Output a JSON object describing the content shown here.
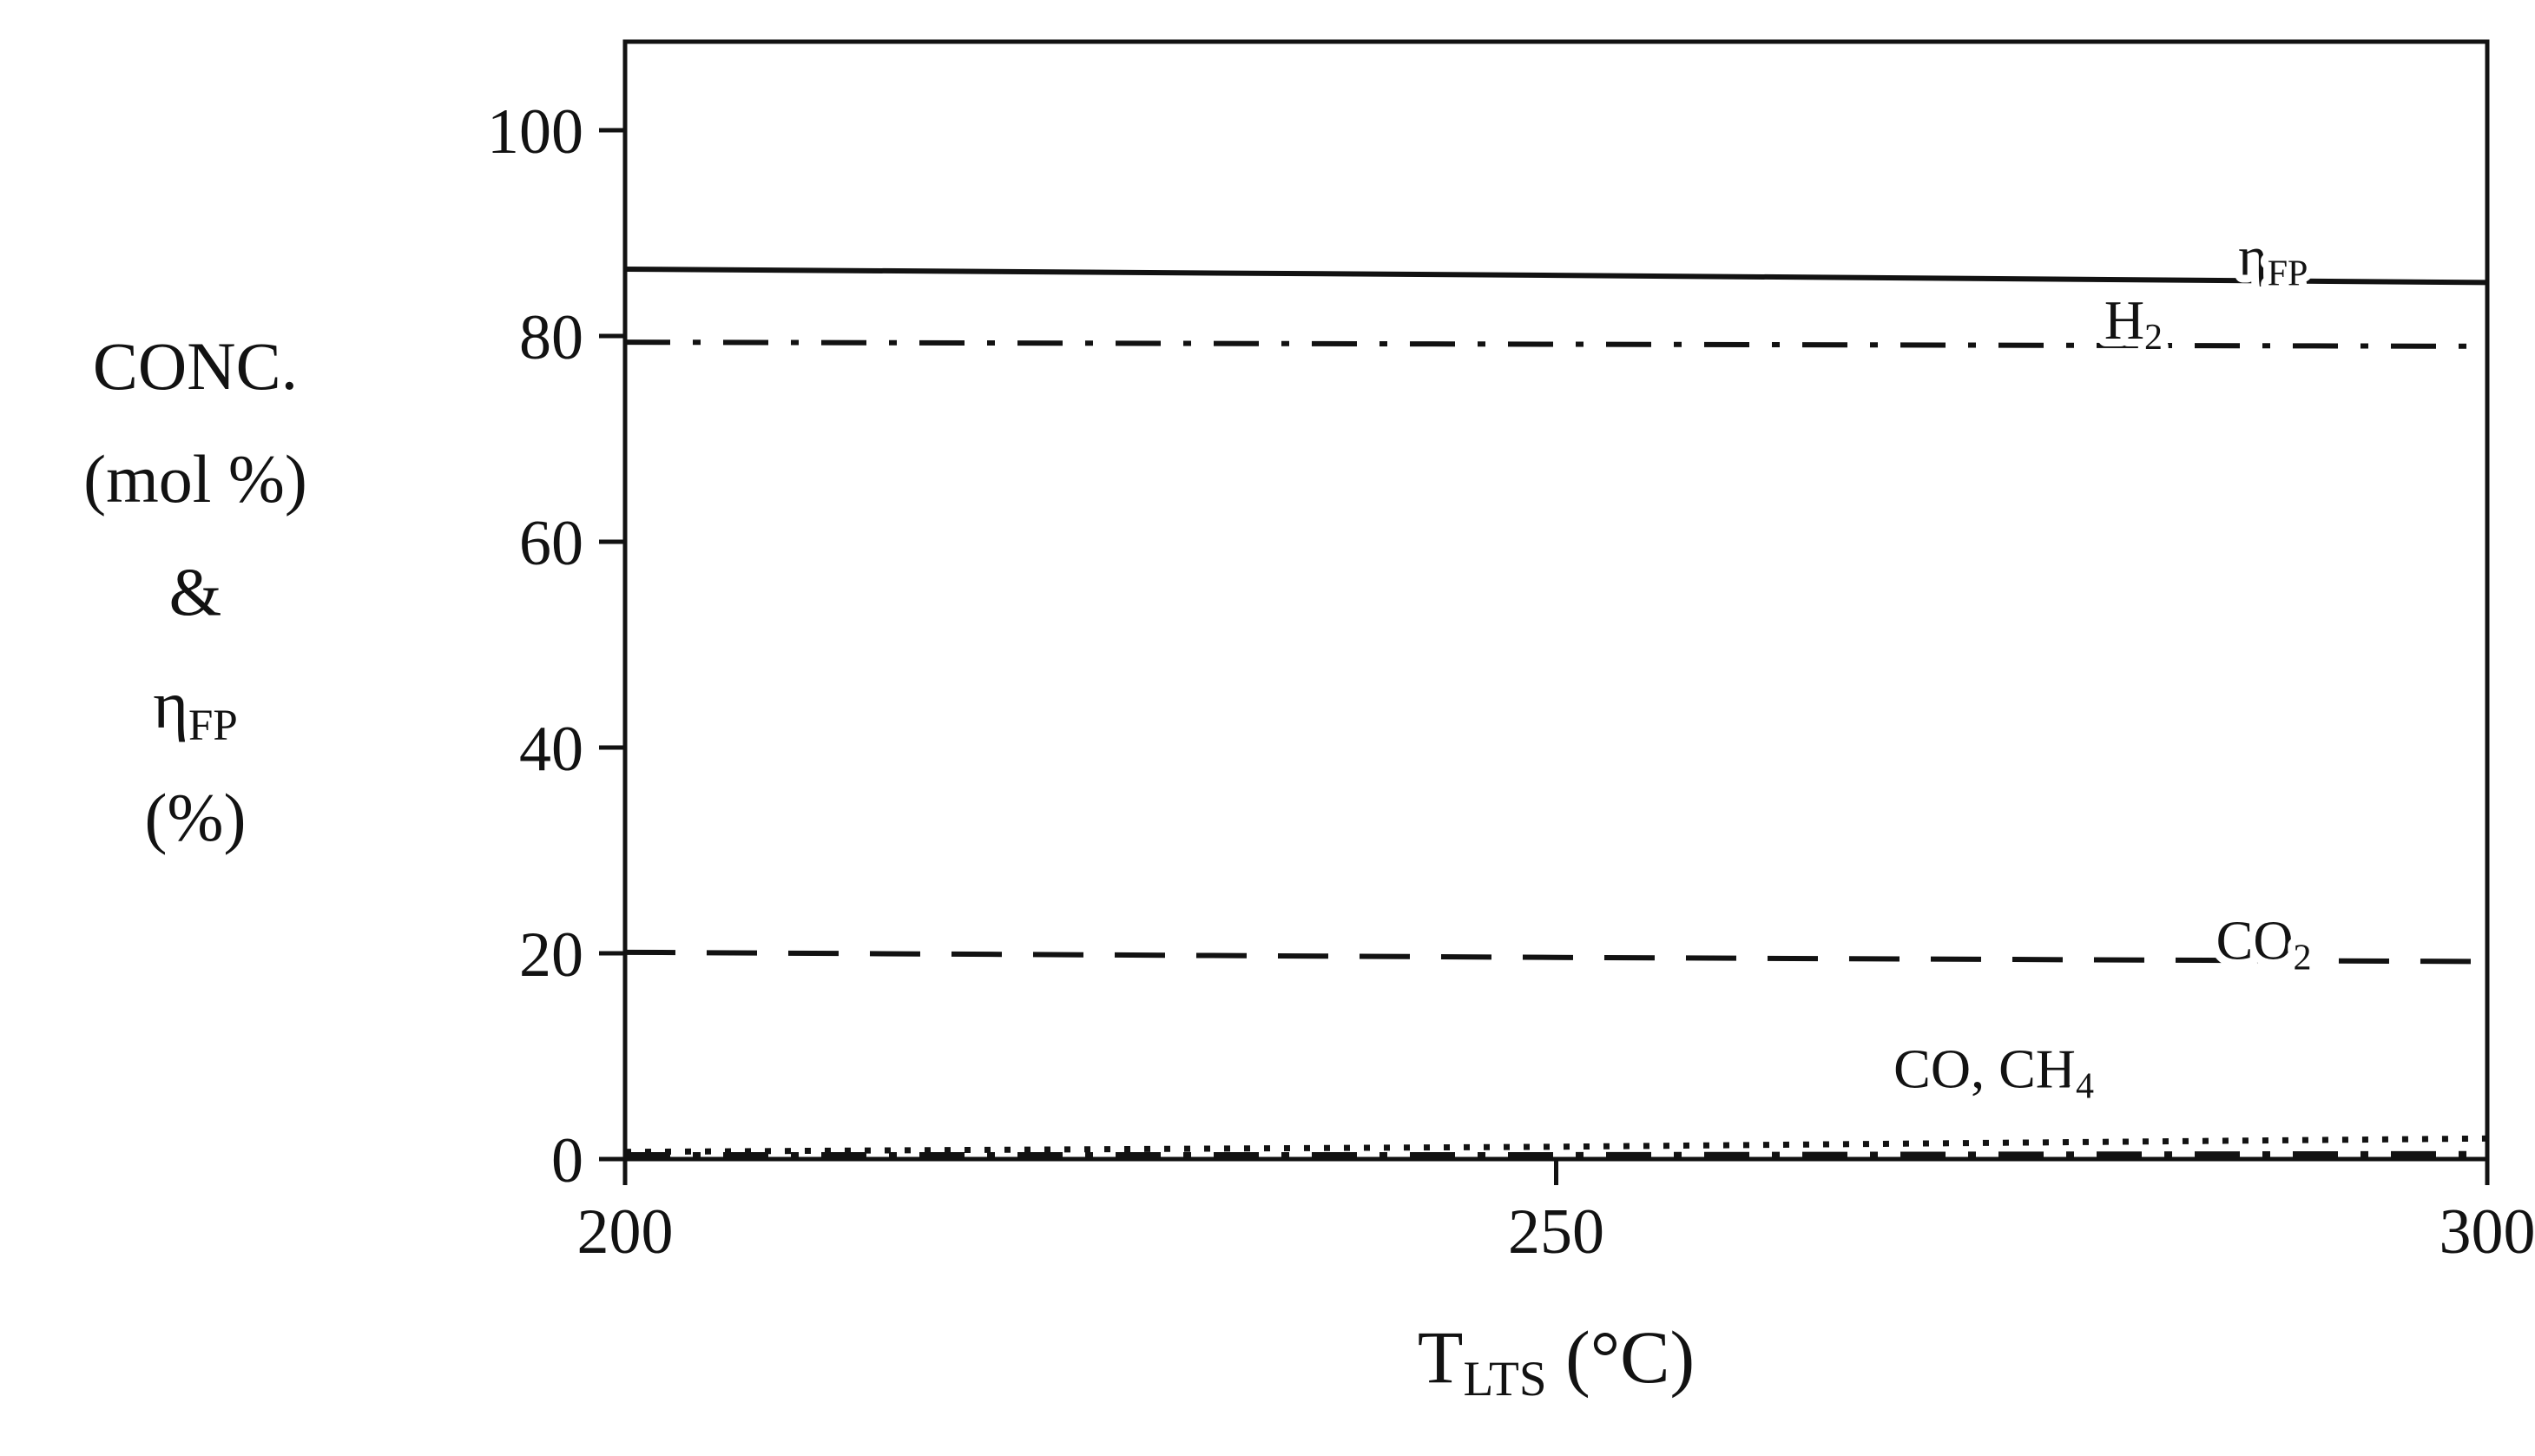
{
  "chart_data": {
    "type": "line",
    "title": "",
    "xlabel_segments": [
      {
        "t": "T"
      },
      {
        "t": "LTS",
        "sub": true
      },
      {
        "t": " (°C)"
      }
    ],
    "ylabel_lines": [
      [
        {
          "t": "CONC."
        }
      ],
      [
        {
          "t": "(mol %)"
        }
      ],
      [
        {
          "t": "&"
        }
      ],
      [
        {
          "t": "η"
        },
        {
          "t": "FP",
          "sub": true
        }
      ],
      [
        {
          "t": "(%)"
        }
      ]
    ],
    "xlim": [
      200,
      300
    ],
    "ylim": [
      0,
      100
    ],
    "x_ticks": [
      200,
      250,
      300
    ],
    "y_ticks": [
      0,
      20,
      40,
      60,
      80,
      100
    ],
    "grid": false,
    "legend_position": "inline-labels",
    "x": [
      200,
      250,
      300
    ],
    "series": [
      {
        "name": "eta_FP",
        "label": [
          {
            "t": "η"
          },
          {
            "t": "FP",
            "sub": true
          }
        ],
        "dash": "solid",
        "width": 6,
        "values": [
          86.5,
          85.9,
          85.2
        ],
        "label_pos": {
          "x": 288.5,
          "y": 87.8
        }
      },
      {
        "name": "H2",
        "label": [
          {
            "t": "H"
          },
          {
            "t": "2",
            "sub": true
          }
        ],
        "dash": "dashdot",
        "width": 6,
        "values": [
          79.4,
          79.2,
          79.0
        ],
        "label_pos": {
          "x": 281,
          "y": 81.6
        }
      },
      {
        "name": "CO2",
        "label": [
          {
            "t": "CO"
          },
          {
            "t": "2",
            "sub": true
          }
        ],
        "dash": "dashed",
        "width": 6,
        "values": [
          20.1,
          19.6,
          19.2
        ],
        "label_pos": {
          "x": 288,
          "y": 21.3
        }
      },
      {
        "name": "CH4",
        "label": [
          {
            "t": "CO, CH"
          },
          {
            "t": "4",
            "sub": true
          }
        ],
        "dash": "dotted",
        "width": 7,
        "values": [
          0.7,
          1.2,
          2.0
        ],
        "label_pos": {
          "x": 273.5,
          "y": 8.8
        }
      },
      {
        "name": "CO",
        "label": null,
        "dash": "dashdot",
        "width": 9,
        "values": [
          0.3,
          0.3,
          0.4
        ],
        "label_pos": null
      }
    ]
  }
}
